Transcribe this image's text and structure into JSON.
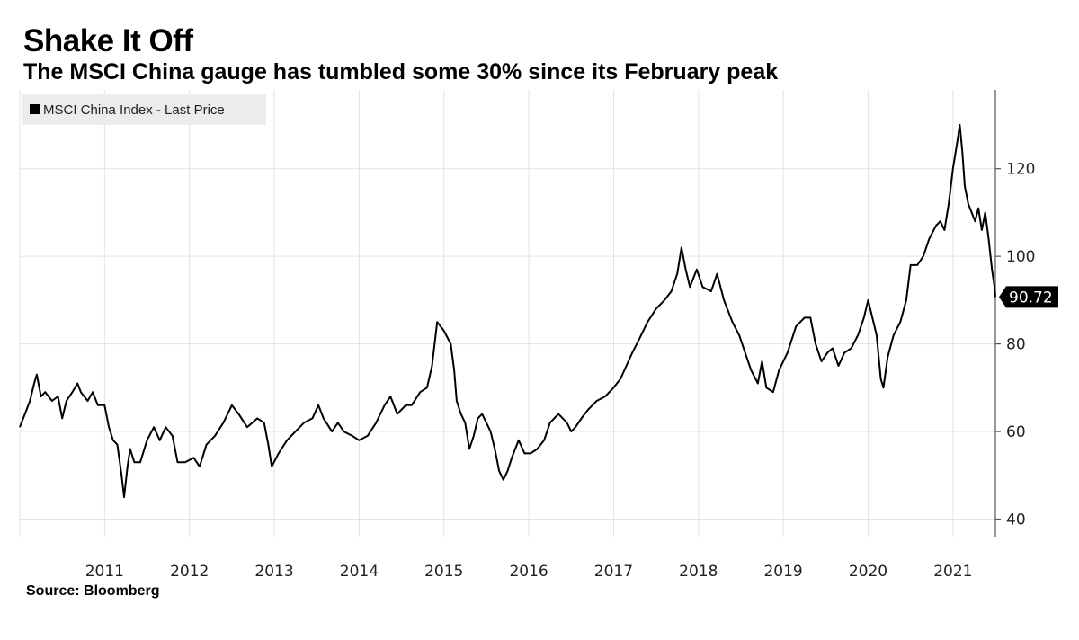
{
  "title": "Shake It Off",
  "subtitle": "The MSCI China gauge has tumbled some 30% since its February peak",
  "source": "Source: Bloomberg",
  "colors": {
    "line": "#000000",
    "grid": "#e3e3e3",
    "axis": "#555555",
    "legend_bg": "#ececec",
    "tag_bg": "#000000"
  },
  "chart_data": {
    "type": "line",
    "title": "Shake It Off",
    "subtitle": "The MSCI China gauge has tumbled some 30% since its February peak",
    "xlabel": "",
    "ylabel": "",
    "legend": {
      "label": "MSCI China Index - Last Price",
      "placement": "top-left"
    },
    "xlim": [
      2010.0,
      2021.5
    ],
    "ylim": [
      36,
      138
    ],
    "y_ticks": [
      40,
      60,
      80,
      100,
      120
    ],
    "x_ticks": [
      "2011",
      "2012",
      "2013",
      "2014",
      "2015",
      "2016",
      "2017",
      "2018",
      "2019",
      "2020",
      "2021"
    ],
    "x_tick_values": [
      2011,
      2012,
      2013,
      2014,
      2015,
      2016,
      2017,
      2018,
      2019,
      2020,
      2021
    ],
    "last_value_label": "90.72",
    "series": [
      {
        "name": "MSCI China Index - Last Price",
        "points": [
          [
            2010.0,
            61
          ],
          [
            2010.06,
            64
          ],
          [
            2010.12,
            67
          ],
          [
            2010.17,
            71
          ],
          [
            2010.2,
            73
          ],
          [
            2010.25,
            68
          ],
          [
            2010.3,
            69
          ],
          [
            2010.38,
            67
          ],
          [
            2010.45,
            68
          ],
          [
            2010.5,
            63
          ],
          [
            2010.55,
            67
          ],
          [
            2010.62,
            69
          ],
          [
            2010.68,
            71
          ],
          [
            2010.72,
            69
          ],
          [
            2010.8,
            67
          ],
          [
            2010.86,
            69
          ],
          [
            2010.92,
            66
          ],
          [
            2011.0,
            66
          ],
          [
            2011.05,
            61
          ],
          [
            2011.1,
            58
          ],
          [
            2011.15,
            57
          ],
          [
            2011.2,
            50
          ],
          [
            2011.23,
            45
          ],
          [
            2011.27,
            52
          ],
          [
            2011.3,
            56
          ],
          [
            2011.35,
            53
          ],
          [
            2011.42,
            53
          ],
          [
            2011.5,
            58
          ],
          [
            2011.58,
            61
          ],
          [
            2011.65,
            58
          ],
          [
            2011.72,
            61
          ],
          [
            2011.8,
            59
          ],
          [
            2011.86,
            53
          ],
          [
            2011.95,
            53
          ],
          [
            2012.05,
            54
          ],
          [
            2012.12,
            52
          ],
          [
            2012.2,
            57
          ],
          [
            2012.3,
            59
          ],
          [
            2012.4,
            62
          ],
          [
            2012.5,
            66
          ],
          [
            2012.58,
            64
          ],
          [
            2012.68,
            61
          ],
          [
            2012.8,
            63
          ],
          [
            2012.88,
            62
          ],
          [
            2012.93,
            57
          ],
          [
            2012.97,
            52
          ],
          [
            2013.05,
            55
          ],
          [
            2013.15,
            58
          ],
          [
            2013.25,
            60
          ],
          [
            2013.35,
            62
          ],
          [
            2013.45,
            63
          ],
          [
            2013.52,
            66
          ],
          [
            2013.58,
            63
          ],
          [
            2013.68,
            60
          ],
          [
            2013.75,
            62
          ],
          [
            2013.82,
            60
          ],
          [
            2013.92,
            59
          ],
          [
            2014.0,
            58
          ],
          [
            2014.1,
            59
          ],
          [
            2014.2,
            62
          ],
          [
            2014.3,
            66
          ],
          [
            2014.37,
            68
          ],
          [
            2014.45,
            64
          ],
          [
            2014.55,
            66
          ],
          [
            2014.62,
            66
          ],
          [
            2014.72,
            69
          ],
          [
            2014.8,
            70
          ],
          [
            2014.86,
            75
          ],
          [
            2014.92,
            85
          ],
          [
            2015.0,
            83
          ],
          [
            2015.08,
            80
          ],
          [
            2015.12,
            74
          ],
          [
            2015.15,
            67
          ],
          [
            2015.2,
            64
          ],
          [
            2015.25,
            62
          ],
          [
            2015.3,
            56
          ],
          [
            2015.35,
            59
          ],
          [
            2015.4,
            63
          ],
          [
            2015.45,
            64
          ],
          [
            2015.5,
            62
          ],
          [
            2015.55,
            60
          ],
          [
            2015.6,
            56
          ],
          [
            2015.65,
            51
          ],
          [
            2015.7,
            49
          ],
          [
            2015.75,
            51
          ],
          [
            2015.8,
            54
          ],
          [
            2015.88,
            58
          ],
          [
            2015.95,
            55
          ],
          [
            2016.02,
            55
          ],
          [
            2016.1,
            56
          ],
          [
            2016.18,
            58
          ],
          [
            2016.25,
            62
          ],
          [
            2016.35,
            64
          ],
          [
            2016.45,
            62
          ],
          [
            2016.5,
            60
          ],
          [
            2016.55,
            61
          ],
          [
            2016.62,
            63
          ],
          [
            2016.7,
            65
          ],
          [
            2016.8,
            67
          ],
          [
            2016.9,
            68
          ],
          [
            2017.0,
            70
          ],
          [
            2017.08,
            72
          ],
          [
            2017.15,
            75
          ],
          [
            2017.22,
            78
          ],
          [
            2017.3,
            81
          ],
          [
            2017.4,
            85
          ],
          [
            2017.5,
            88
          ],
          [
            2017.6,
            90
          ],
          [
            2017.68,
            92
          ],
          [
            2017.75,
            96
          ],
          [
            2017.8,
            102
          ],
          [
            2017.85,
            97
          ],
          [
            2017.9,
            93
          ],
          [
            2017.98,
            97
          ],
          [
            2018.05,
            93
          ],
          [
            2018.15,
            92
          ],
          [
            2018.22,
            96
          ],
          [
            2018.3,
            90
          ],
          [
            2018.4,
            85
          ],
          [
            2018.48,
            82
          ],
          [
            2018.55,
            78
          ],
          [
            2018.62,
            74
          ],
          [
            2018.7,
            71
          ],
          [
            2018.75,
            76
          ],
          [
            2018.8,
            70
          ],
          [
            2018.88,
            69
          ],
          [
            2018.95,
            74
          ],
          [
            2019.05,
            78
          ],
          [
            2019.15,
            84
          ],
          [
            2019.25,
            86
          ],
          [
            2019.32,
            86
          ],
          [
            2019.38,
            80
          ],
          [
            2019.45,
            76
          ],
          [
            2019.52,
            78
          ],
          [
            2019.58,
            79
          ],
          [
            2019.65,
            75
          ],
          [
            2019.72,
            78
          ],
          [
            2019.8,
            79
          ],
          [
            2019.88,
            82
          ],
          [
            2019.95,
            86
          ],
          [
            2020.0,
            90
          ],
          [
            2020.05,
            86
          ],
          [
            2020.1,
            82
          ],
          [
            2020.15,
            72
          ],
          [
            2020.18,
            70
          ],
          [
            2020.23,
            77
          ],
          [
            2020.3,
            82
          ],
          [
            2020.38,
            85
          ],
          [
            2020.45,
            90
          ],
          [
            2020.5,
            98
          ],
          [
            2020.58,
            98
          ],
          [
            2020.65,
            100
          ],
          [
            2020.72,
            104
          ],
          [
            2020.8,
            107
          ],
          [
            2020.85,
            108
          ],
          [
            2020.9,
            106
          ],
          [
            2020.95,
            112
          ],
          [
            2021.0,
            120
          ],
          [
            2021.05,
            126
          ],
          [
            2021.08,
            130
          ],
          [
            2021.11,
            124
          ],
          [
            2021.14,
            116
          ],
          [
            2021.18,
            112
          ],
          [
            2021.22,
            110
          ],
          [
            2021.26,
            108
          ],
          [
            2021.3,
            111
          ],
          [
            2021.34,
            106
          ],
          [
            2021.38,
            110
          ],
          [
            2021.42,
            104
          ],
          [
            2021.46,
            97
          ],
          [
            2021.49,
            93
          ],
          [
            2021.5,
            90.72
          ]
        ]
      }
    ]
  }
}
